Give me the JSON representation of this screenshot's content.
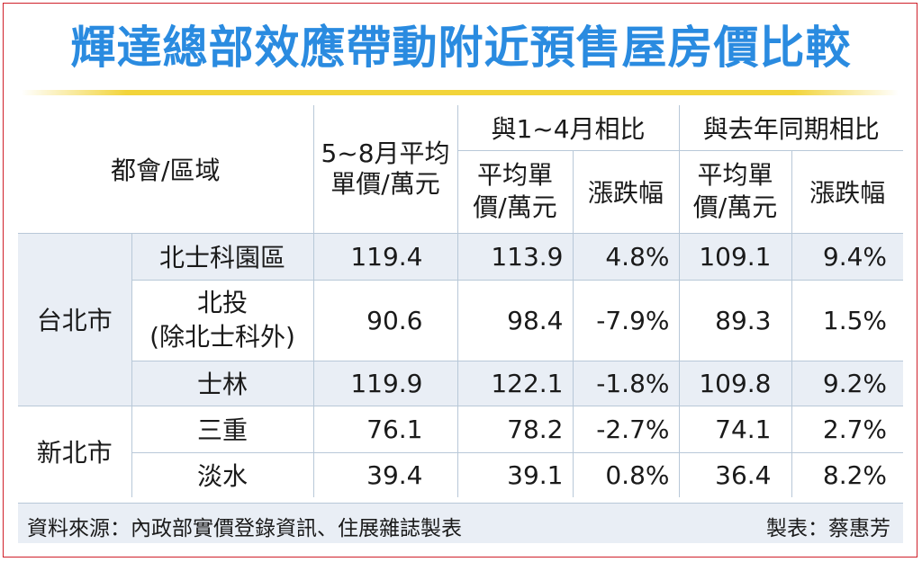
{
  "title": "輝達總部效應帶動附近預售屋房價比較",
  "chart_data": {
    "type": "table",
    "header": {
      "region": "都會/區域",
      "avg_price": "5~8月平均單價/萬元",
      "vs_jan_apr": "與1~4月相比",
      "vs_last_year": "與去年同期相比",
      "sub_price": "平均單價/萬元",
      "sub_change": "漲跌幅"
    },
    "groups": [
      {
        "city": "台北市",
        "rows": [
          {
            "area": "北士科園區",
            "avg": "119.4",
            "prev_avg": "113.9",
            "prev_chg": "4.8%",
            "ly_avg": "109.1",
            "ly_chg": "9.4%"
          },
          {
            "area": "北投(除北士科外)",
            "avg": "90.6",
            "prev_avg": "98.4",
            "prev_chg": "-7.9%",
            "ly_avg": "89.3",
            "ly_chg": "1.5%"
          },
          {
            "area": "士林",
            "avg": "119.9",
            "prev_avg": "122.1",
            "prev_chg": "-1.8%",
            "ly_avg": "109.8",
            "ly_chg": "9.2%"
          }
        ]
      },
      {
        "city": "新北市",
        "rows": [
          {
            "area": "三重",
            "avg": "76.1",
            "prev_avg": "78.2",
            "prev_chg": "-2.7%",
            "ly_avg": "74.1",
            "ly_chg": "2.7%"
          },
          {
            "area": "淡水",
            "avg": "39.4",
            "prev_avg": "39.1",
            "prev_chg": "0.8%",
            "ly_avg": "36.4",
            "ly_chg": "8.2%"
          }
        ]
      }
    ]
  },
  "display": {
    "h_price_1": "5~8月平均",
    "h_price_2": "單價/萬元",
    "h_sub_price_1": "平均單",
    "h_sub_price_2": "價/萬元",
    "area_2a": "北投",
    "area_2b": "(除北士科外)"
  },
  "footer": {
    "source": "資料來源：內政部實價登錄資訊、住展雜誌製表",
    "maker": "製表：蔡惠芳"
  },
  "colors": {
    "title": "#2a8be0",
    "rule": "#f2d43a",
    "row_shade": "#e9eef5",
    "border": "#d0202a"
  }
}
